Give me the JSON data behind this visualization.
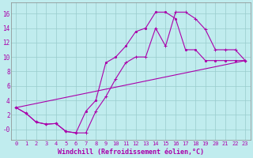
{
  "background_color": "#c0ecee",
  "grid_color": "#99cccc",
  "line_color": "#aa00aa",
  "xlabel": "Windchill (Refroidissement éolien,°C)",
  "xlabel_fontsize": 6.0,
  "xtick_fontsize": 5.0,
  "ytick_fontsize": 5.5,
  "xlim": [
    -0.5,
    23.5
  ],
  "ylim": [
    -1.5,
    17.5
  ],
  "yticks": [
    0,
    2,
    4,
    6,
    8,
    10,
    12,
    14,
    16
  ],
  "ytick_labels": [
    "-0",
    "2",
    "4",
    "6",
    "8",
    "10",
    "12",
    "14",
    "16"
  ],
  "xticks": [
    0,
    1,
    2,
    3,
    4,
    5,
    6,
    7,
    8,
    9,
    10,
    11,
    12,
    13,
    14,
    15,
    16,
    17,
    18,
    19,
    20,
    21,
    22,
    23
  ],
  "line1_x": [
    0,
    1,
    2,
    3,
    4,
    5,
    6,
    7,
    8,
    9,
    10,
    11,
    12,
    13,
    14,
    15,
    16,
    17,
    18,
    19,
    20,
    21,
    22,
    23
  ],
  "line1_y": [
    3.0,
    2.2,
    1.0,
    0.7,
    0.8,
    -0.3,
    -0.5,
    -0.5,
    2.5,
    4.5,
    7.0,
    9.2,
    10.0,
    10.0,
    14.0,
    11.5,
    16.2,
    16.2,
    15.3,
    13.8,
    11.0,
    11.0,
    11.0,
    9.5
  ],
  "line2_x": [
    0,
    23
  ],
  "line2_y": [
    3.0,
    9.5
  ],
  "line3_x": [
    0,
    1,
    2,
    3,
    4,
    5,
    6,
    7,
    8,
    9,
    10,
    11,
    12,
    13,
    14,
    15,
    16,
    17,
    18,
    19,
    20,
    21,
    22,
    23
  ],
  "line3_y": [
    3.0,
    2.2,
    1.0,
    0.7,
    0.8,
    -0.3,
    -0.5,
    2.5,
    4.0,
    9.2,
    10.0,
    11.5,
    13.5,
    14.0,
    16.2,
    16.2,
    15.3,
    11.0,
    11.0,
    9.5,
    9.5,
    9.5,
    9.5,
    9.5
  ]
}
